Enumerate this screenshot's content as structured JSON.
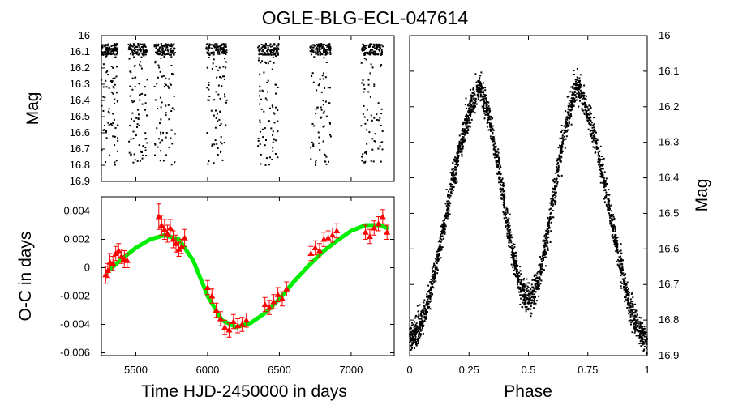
{
  "title": "OGLE-BLG-ECL-047614",
  "colors": {
    "points": "#000000",
    "oc_points": "#ff0000",
    "fit": "#00ee00"
  },
  "chart_data": [
    {
      "id": "light_curve_time",
      "type": "scatter",
      "title": "",
      "xlabel": "",
      "ylabel": "Mag",
      "xlim": [
        5260,
        7300
      ],
      "ylim": [
        16.9,
        16.0
      ],
      "y_inverted": true,
      "yticks": [
        "16",
        "16.1",
        "16.2",
        "16.3",
        "16.4",
        "16.5",
        "16.6",
        "16.7",
        "16.8",
        "16.9"
      ],
      "season_spans": [
        [
          5260,
          5375
        ],
        [
          5450,
          5580
        ],
        [
          5630,
          5775
        ],
        [
          5990,
          6135
        ],
        [
          6350,
          6495
        ],
        [
          6715,
          6860
        ],
        [
          7070,
          7220
        ]
      ],
      "mag_range": [
        16.05,
        16.8
      ],
      "grid": false
    },
    {
      "id": "oc_diagram",
      "type": "scatter",
      "title": "",
      "xlabel": "Time HJD-2450000 in days",
      "ylabel": "O-C in days",
      "xlim": [
        5260,
        7300
      ],
      "ylim": [
        -0.0062,
        0.005
      ],
      "xticks": [
        "5500",
        "6000",
        "6500",
        "7000"
      ],
      "yticks": [
        "0.004",
        "0.002",
        "0",
        "-0.002",
        "-0.004",
        "-0.006"
      ],
      "series": [
        {
          "x": [
            5290,
            5305,
            5320,
            5340,
            5360,
            5380,
            5400,
            5420,
            5440,
            5660,
            5680,
            5700,
            5720,
            5740,
            5760,
            5780,
            5800,
            5820,
            5840,
            6000,
            6030,
            6060,
            6090,
            6120,
            6150,
            6180,
            6210,
            6240,
            6270,
            6400,
            6430,
            6460,
            6490,
            6520,
            6550,
            6720,
            6750,
            6780,
            6810,
            6840,
            6870,
            6900,
            7100,
            7130,
            7160,
            7190,
            7220,
            7250
          ],
          "y": [
            -0.0005,
            -0.0002,
            0.0004,
            0.0003,
            0.001,
            0.0012,
            0.0008,
            0.0006,
            0.0005,
            0.0036,
            0.003,
            0.0027,
            0.0024,
            0.0028,
            0.002,
            0.0017,
            0.0013,
            0.0015,
            0.0021,
            -0.0014,
            -0.002,
            -0.003,
            -0.0036,
            -0.0042,
            -0.0044,
            -0.0038,
            -0.0041,
            -0.004,
            -0.0037,
            -0.0026,
            -0.0028,
            -0.0024,
            -0.0019,
            -0.0022,
            -0.0015,
            0.001,
            0.0014,
            0.0012,
            0.002,
            0.0021,
            0.0023,
            0.0026,
            0.0025,
            0.0022,
            0.0028,
            0.0031,
            0.0036,
            0.0025
          ],
          "err": [
            0.0006,
            0.0005,
            0.0006,
            0.0005,
            0.0005,
            0.0005,
            0.0005,
            0.0006,
            0.0005,
            0.0009,
            0.0007,
            0.0007,
            0.0006,
            0.0006,
            0.0006,
            0.0006,
            0.0005,
            0.0005,
            0.0006,
            0.0005,
            0.0005,
            0.0005,
            0.0005,
            0.0005,
            0.0005,
            0.0005,
            0.0005,
            0.0005,
            0.0005,
            0.0005,
            0.0005,
            0.0005,
            0.0005,
            0.0005,
            0.0005,
            0.0005,
            0.0005,
            0.0005,
            0.0005,
            0.0005,
            0.0005,
            0.0005,
            0.0005,
            0.0005,
            0.0005,
            0.0005,
            0.0005,
            0.0005
          ]
        }
      ],
      "fit": {
        "x": [
          5300,
          5400,
          5500,
          5600,
          5700,
          5800,
          5900,
          6000,
          6100,
          6200,
          6300,
          6400,
          6500,
          6600,
          6700,
          6800,
          6900,
          7000,
          7100,
          7200,
          7250
        ],
        "y": [
          -0.0003,
          0.0006,
          0.0014,
          0.002,
          0.0023,
          0.002,
          0.0005,
          -0.002,
          -0.0037,
          -0.0042,
          -0.0039,
          -0.0032,
          -0.0022,
          -0.001,
          0.0001,
          0.0011,
          0.0019,
          0.0026,
          0.003,
          0.003,
          0.0028
        ]
      },
      "grid": false
    },
    {
      "id": "phased_light_curve",
      "type": "scatter",
      "title": "",
      "xlabel": "Phase",
      "ylabel": "Mag",
      "xlim": [
        0,
        1
      ],
      "ylim": [
        16.9,
        16.0
      ],
      "y_inverted": true,
      "xticks": [
        "0",
        "0.25",
        "0.5",
        "0.75",
        "1"
      ],
      "yticks": [
        "16",
        "16.1",
        "16.2",
        "16.3",
        "16.4",
        "16.5",
        "16.6",
        "16.7",
        "16.8",
        "16.9"
      ],
      "curve_model": {
        "max_mag": 16.07,
        "min_mag_primary": 16.85,
        "min_mag_secondary": 16.74,
        "scatter_mag": 0.035
      },
      "grid": false
    }
  ]
}
